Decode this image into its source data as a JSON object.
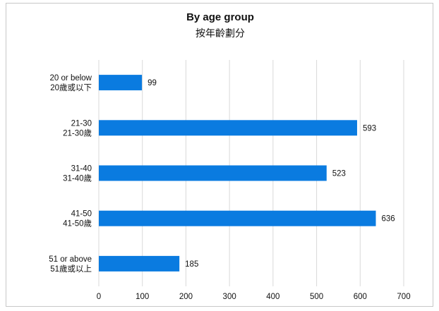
{
  "chart_data": {
    "type": "bar",
    "orientation": "horizontal",
    "title": "By age group",
    "subtitle": "按年齡劃分",
    "categories": [
      [
        "20 or below",
        "20歲或以下"
      ],
      [
        "21-30",
        "21-30歲"
      ],
      [
        "31-40",
        "31-40歲"
      ],
      [
        "41-50",
        "41-50歲"
      ],
      [
        "51 or above",
        "51歲或以上"
      ]
    ],
    "values": [
      99,
      593,
      523,
      636,
      185
    ],
    "xlim": [
      0,
      700
    ],
    "xticks": [
      "0",
      "100",
      "200",
      "300",
      "400",
      "500",
      "600",
      "700"
    ],
    "grid": true,
    "legend": "none",
    "bar_color": "#0a7be0",
    "grid_color": "#d9d9d9"
  }
}
